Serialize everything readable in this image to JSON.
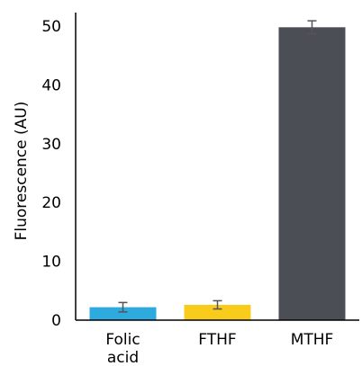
{
  "chart_data": {
    "type": "bar",
    "categories": [
      "Folic acid",
      "FTHF",
      "MTHF"
    ],
    "category_label_lines": [
      [
        "Folic",
        "acid"
      ],
      [
        "FTHF"
      ],
      [
        "MTHF"
      ]
    ],
    "values": [
      2.2,
      2.6,
      49.8
    ],
    "errors": [
      0.8,
      0.7,
      1.1
    ],
    "bar_colors": [
      "#2EAADF",
      "#F9CB1B",
      "#4B4F55"
    ],
    "error_bar_color": "#555555",
    "axis_color": "#000000",
    "title": "",
    "xlabel": "",
    "ylabel": "Fluorescence (AU)",
    "ylim": [
      0,
      50
    ],
    "yticks": [
      0,
      10,
      20,
      30,
      40,
      50
    ],
    "grid": false,
    "legend": "none"
  }
}
